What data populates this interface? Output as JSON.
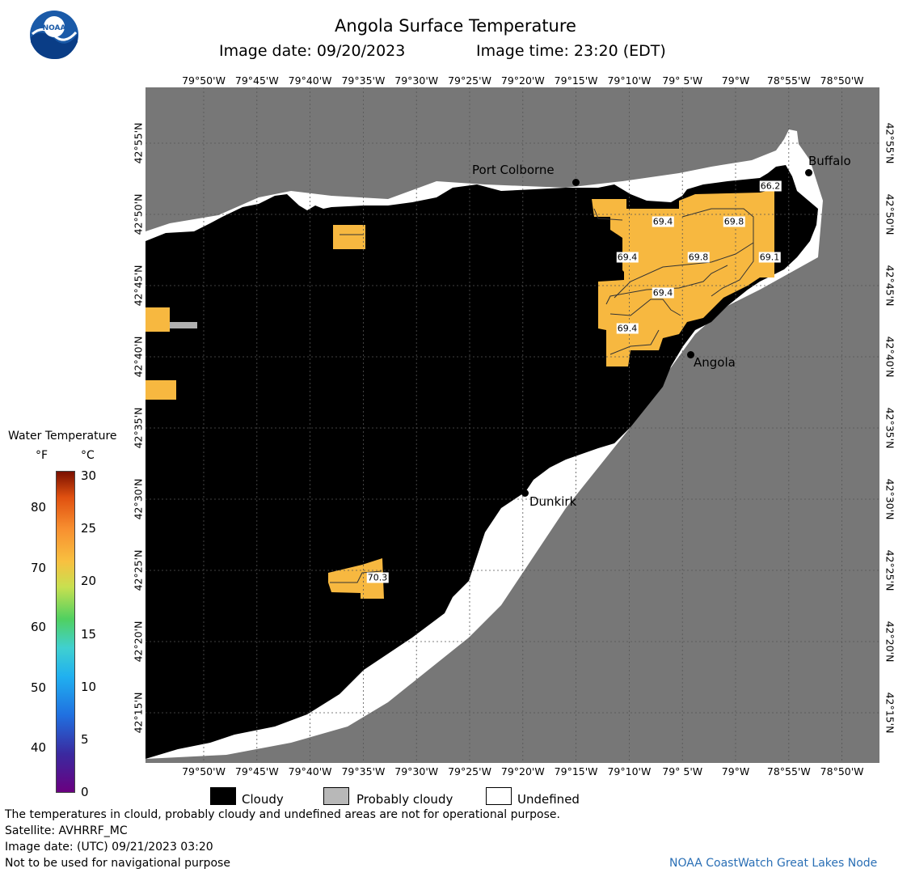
{
  "header": {
    "title": "Angola Surface Temperature",
    "image_date": "Image date: 09/20/2023",
    "image_time": "Image time: 23:20 (EDT)"
  },
  "logo": {
    "text": "NOAA",
    "icon": "noaa-logo-icon"
  },
  "axes": {
    "lon_ticks": [
      "79°50'W",
      "79°45'W",
      "79°40'W",
      "79°35'W",
      "79°30'W",
      "79°25'W",
      "79°20'W",
      "79°15'W",
      "79°10'W",
      "79° 5'W",
      "79°W",
      "78°55'W",
      "78°50'W"
    ],
    "lat_ticks": [
      "42°55'N",
      "42°50'N",
      "42°45'N",
      "42°40'N",
      "42°35'N",
      "42°30'N",
      "42°25'N",
      "42°20'N",
      "42°15'N"
    ]
  },
  "places": {
    "port_colborne": "Port Colborne",
    "buffalo": "Buffalo",
    "angola": "Angola",
    "dunkirk": "Dunkirk"
  },
  "contours": {
    "c1": "66.2",
    "c2": "69.4",
    "c3": "69.8",
    "c4": "69.4",
    "c5": "69.8",
    "c6": "69.1",
    "c7": "69.4",
    "c8": "69.4",
    "c9": "70.3"
  },
  "colorbar": {
    "title": "Water Temperature",
    "unit_f": "°F",
    "unit_c": "°C",
    "f_ticks": [
      "80",
      "70",
      "60",
      "50",
      "40"
    ],
    "c_ticks": [
      "30",
      "25",
      "20",
      "15",
      "10",
      "5",
      "0"
    ]
  },
  "legend": {
    "cloudy": "Cloudy",
    "probably_cloudy": "Probably cloudy",
    "undefined": "Undefined"
  },
  "footer": {
    "disclaimer": "The temperatures in clould, probably cloudy and undefined areas are not for operational purpose.",
    "satellite": "Satellite: AVHRRF_MC",
    "utc_date": "Image date: (UTC) 09/21/2023  03:20",
    "nav_warning": "Not to be used for navigational purpose",
    "credit": "NOAA CoastWatch Great Lakes Node"
  },
  "colors": {
    "land": "#777777",
    "cloud": "#000000",
    "warm_water": "#f7b840",
    "credit_text": "#2a6fb5"
  }
}
